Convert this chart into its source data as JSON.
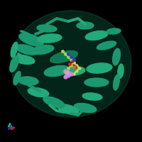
{
  "background_color": "#000000",
  "protein_color": "#1a9970",
  "protein_color_dark": "#0d7a55",
  "protein_color_highlight": "#22aa7a",
  "ligand_colors": {
    "yellow_green": "#aacc44",
    "yellow_green2": "#ccdd55",
    "purple": "#cc88dd",
    "pink": "#dd99cc",
    "red": "#dd2222",
    "blue": "#2244cc",
    "orange": "#ee6622",
    "cyan": "#44cccc"
  },
  "axis_colors": {
    "x": "#dd2222",
    "y": "#22cc22",
    "z": "#2244cc"
  },
  "figsize": [
    2.0,
    2.0
  ],
  "dpi": 100
}
